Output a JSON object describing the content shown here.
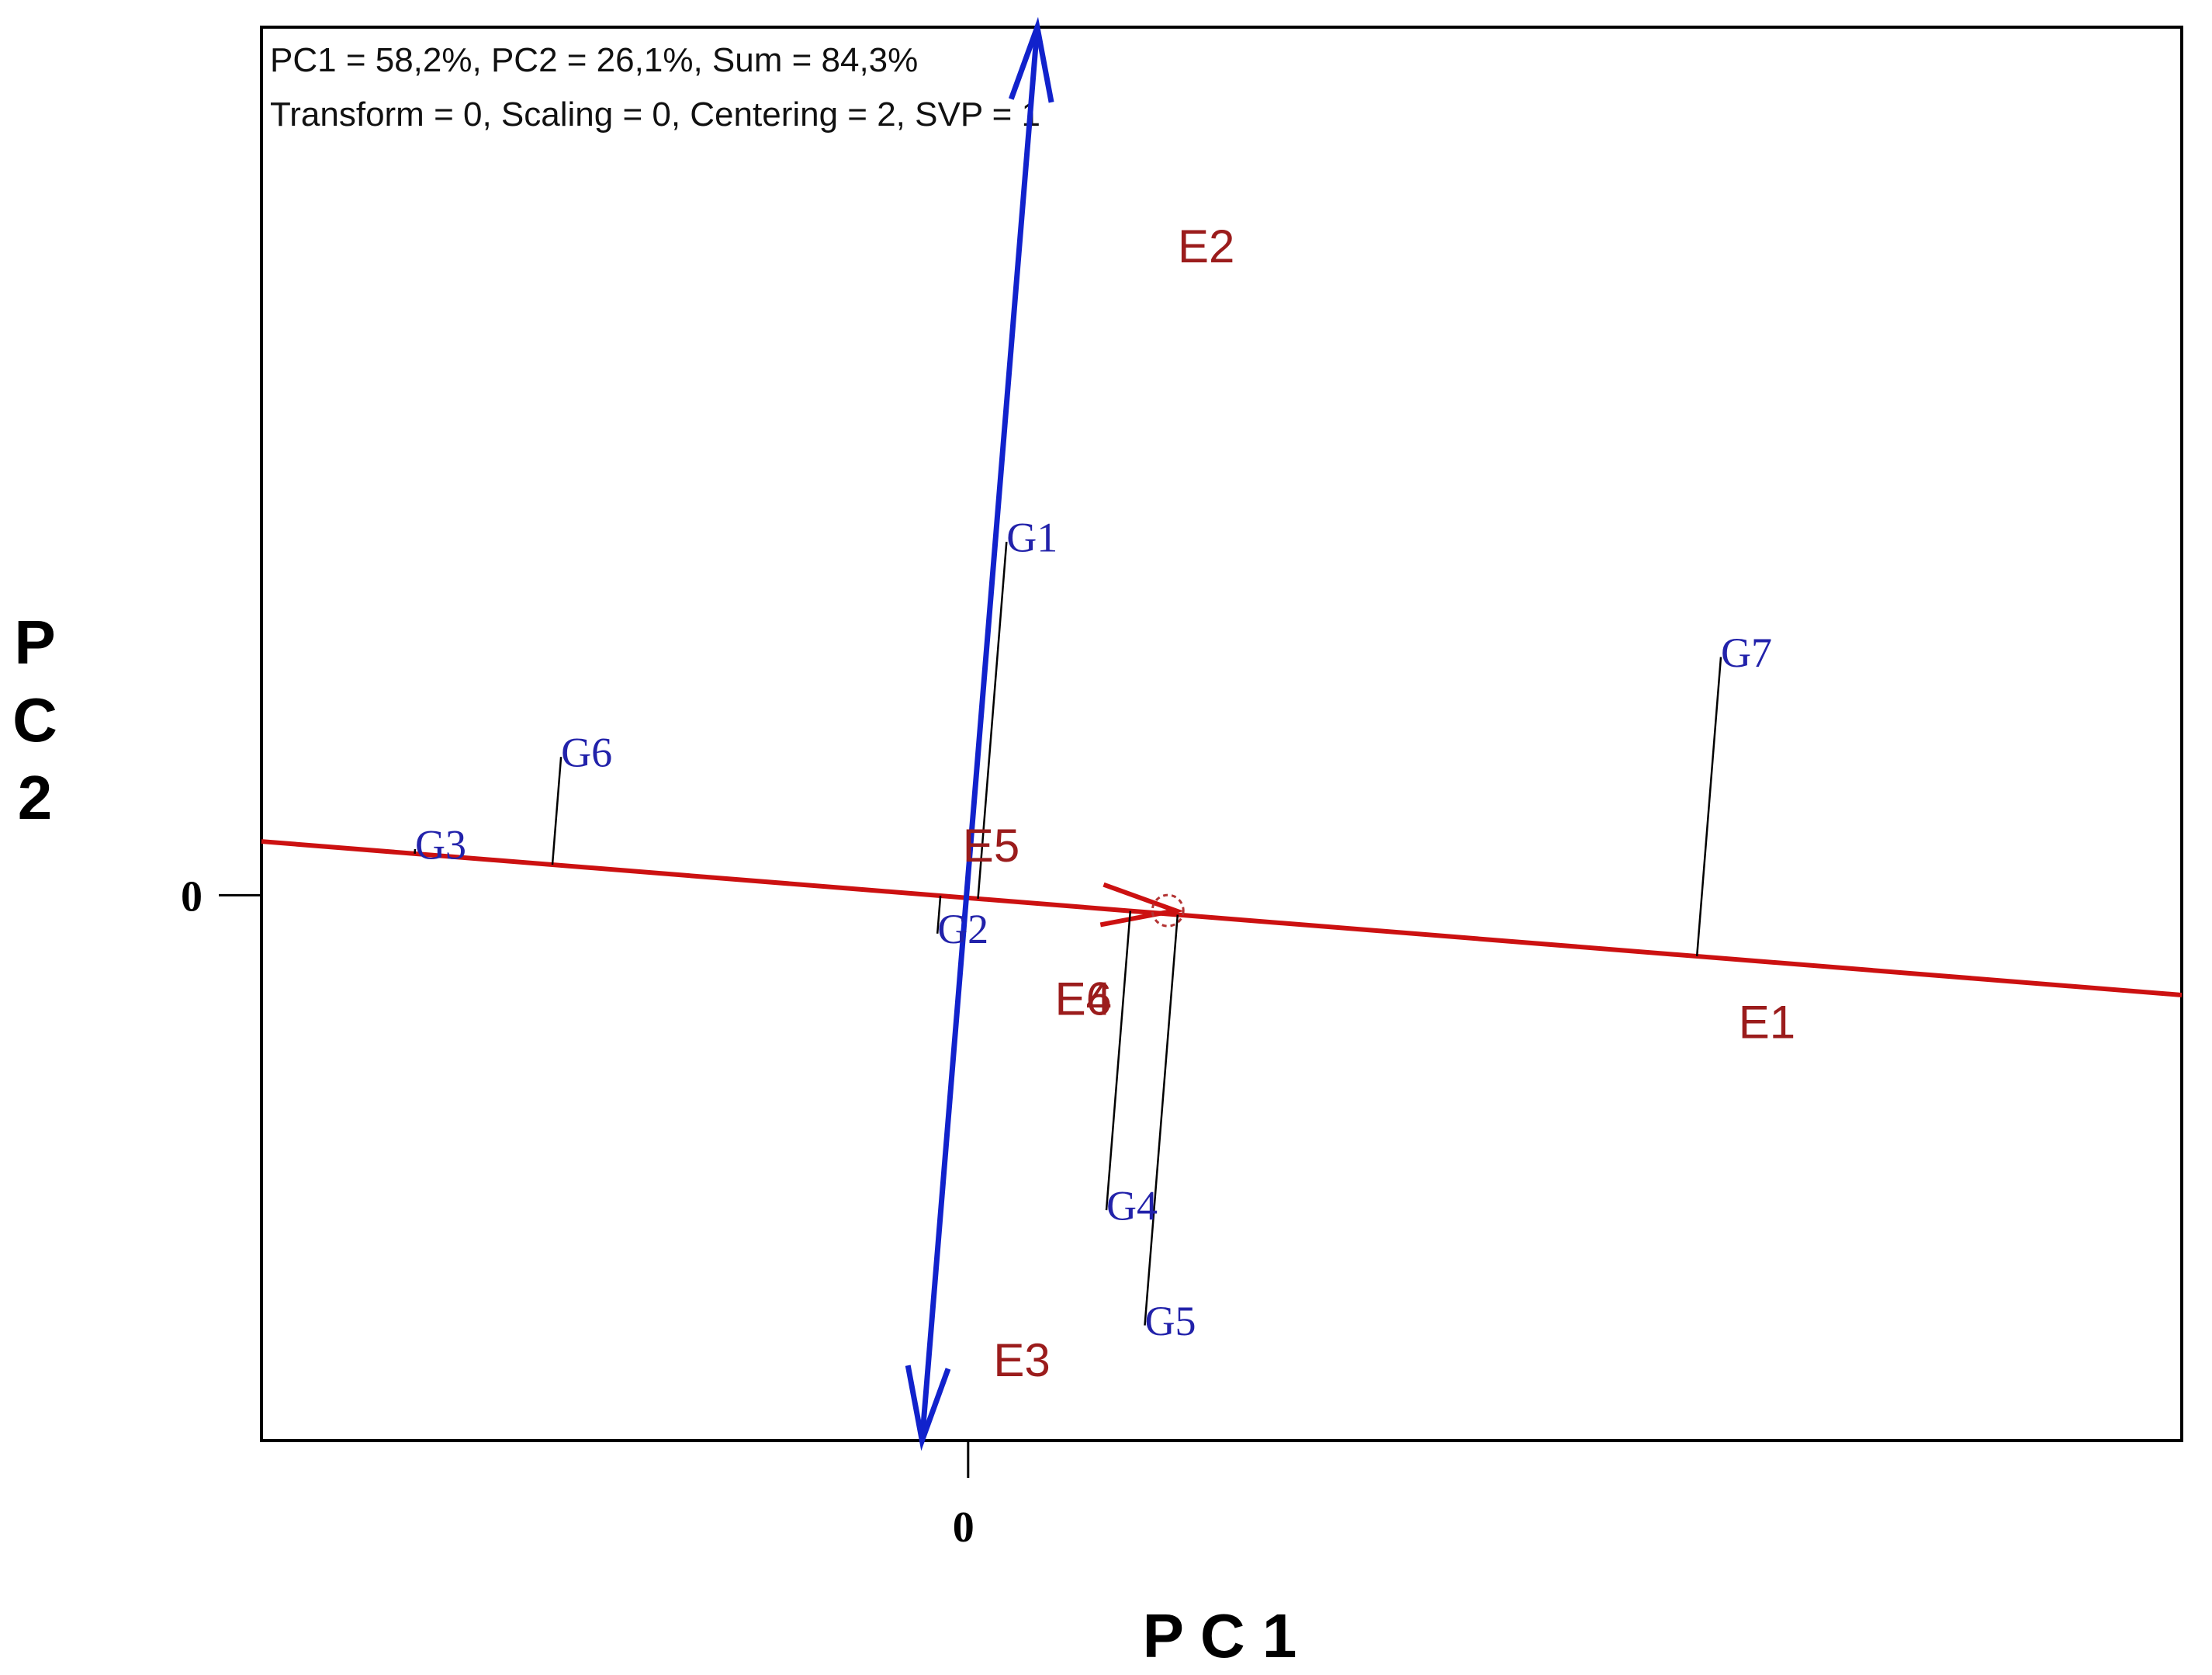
{
  "chart_data": {
    "type": "scatter",
    "subtype": "GGE biplot (which-won-where / AEC view)",
    "annotations": [
      "PC1 = 58,2%, PC2 = 26,1%, Sum = 84,3%",
      "Transform = 0, Scaling = 0, Centering = 2, SVP = 1"
    ],
    "xlabel": "P C 1",
    "ylabel": "P C 2",
    "x_ticks": [
      "0"
    ],
    "y_ticks": [
      "0"
    ],
    "xlim": [
      -0.92,
      1.58
    ],
    "ylim": [
      -0.71,
      1.13
    ],
    "grid": false,
    "legend": "none",
    "colors": {
      "genotype": "#2222aa",
      "environment": "#9b1c1c",
      "aec_abscissa": "#cc1111",
      "aec_ordinate": "#1122cc",
      "projection": "#000000",
      "frame": "#000000"
    },
    "genotypes": [
      {
        "label": "G1",
        "x": 0.05,
        "y": 0.46
      },
      {
        "label": "G2",
        "x": -0.04,
        "y": -0.05
      },
      {
        "label": "G3",
        "x": -0.72,
        "y": 0.06
      },
      {
        "label": "G4",
        "x": 0.18,
        "y": -0.41
      },
      {
        "label": "G5",
        "x": 0.23,
        "y": -0.56
      },
      {
        "label": "G6",
        "x": -0.53,
        "y": 0.18
      },
      {
        "label": "G7",
        "x": 0.98,
        "y": 0.31
      }
    ],
    "environments": [
      {
        "label": "E1",
        "x": 1.04,
        "y": -0.17
      },
      {
        "label": "E2",
        "x": 0.31,
        "y": 0.84
      },
      {
        "label": "E3",
        "x": 0.07,
        "y": -0.61
      },
      {
        "label": "E4",
        "x": 0.15,
        "y": -0.14
      },
      {
        "label": "E5",
        "x": 0.03,
        "y": 0.06
      },
      {
        "label": "E6",
        "x": 0.15,
        "y": -0.14
      }
    ],
    "aec_abscissa": {
      "from": [
        -0.92,
        0.07
      ],
      "to": [
        1.58,
        -0.13
      ],
      "arrow_at": [
        0.27,
        -0.02
      ]
    },
    "aec_ordinate": {
      "from": [
        -0.06,
        -0.71
      ],
      "to": [
        0.09,
        1.13
      ]
    },
    "average_environment_circle": {
      "x": 0.26,
      "y": -0.02
    }
  }
}
